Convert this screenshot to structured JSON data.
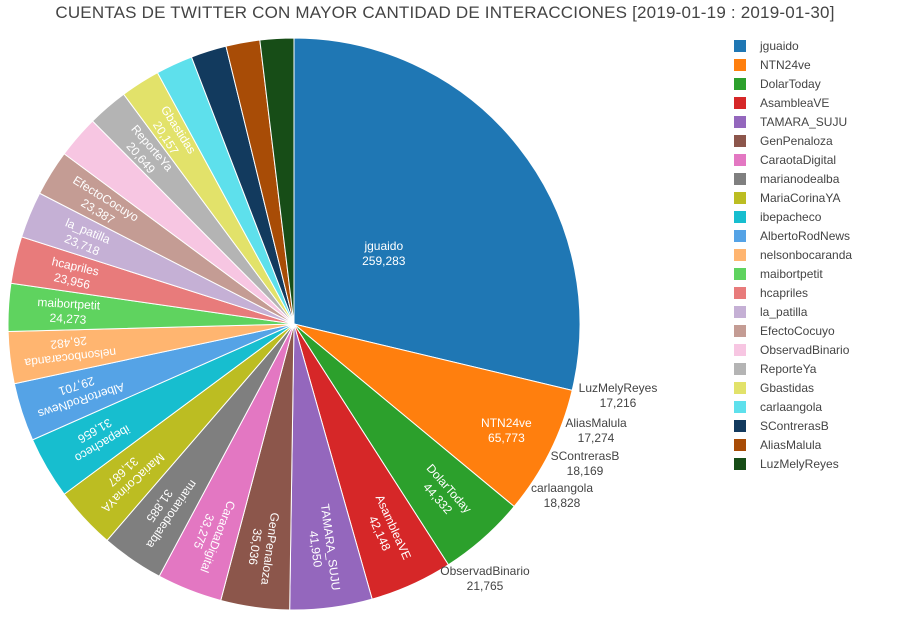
{
  "chart_data": {
    "type": "pie",
    "title": "CUENTAS DE TWITTER CON MAYOR CANTIDAD DE INTERACCIONES [2019-01-19 : 2019-01-30]",
    "legend_position": "right",
    "slices": [
      {
        "name": "jguaido",
        "value": 259283,
        "value_label": "259,283",
        "color": "#1f77b4"
      },
      {
        "name": "NTN24ve",
        "value": 65773,
        "value_label": "65,773",
        "color": "#ff7f0e"
      },
      {
        "name": "DolarToday",
        "value": 44332,
        "value_label": "44,332",
        "color": "#2ca02c"
      },
      {
        "name": "AsambleaVE",
        "value": 42148,
        "value_label": "42,148",
        "color": "#d62728"
      },
      {
        "name": "TAMARA_SUJU",
        "value": 41950,
        "value_label": "41,950",
        "color": "#9467bd"
      },
      {
        "name": "GenPenaloza",
        "value": 35036,
        "value_label": "35,036",
        "color": "#8c564b"
      },
      {
        "name": "CaraotaDigital",
        "value": 33275,
        "value_label": "33,275",
        "color": "#e377c2"
      },
      {
        "name": "marianodealba",
        "value": 31885,
        "value_label": "31,885",
        "color": "#7f7f7f"
      },
      {
        "name": "MariaCorinaYA",
        "value": 31687,
        "value_label": "31,687",
        "color": "#bcbd22"
      },
      {
        "name": "ibepacheco",
        "value": 31656,
        "value_label": "31,656",
        "color": "#17becf"
      },
      {
        "name": "AlbertoRodNews",
        "value": 29701,
        "value_label": "29,701",
        "color": "#55a3e6"
      },
      {
        "name": "nelsonbocaranda",
        "value": 26482,
        "value_label": "26,482",
        "color": "#ffb570"
      },
      {
        "name": "maibortpetit",
        "value": 24273,
        "value_label": "24,273",
        "color": "#5fd35f"
      },
      {
        "name": "hcapriles",
        "value": 23956,
        "value_label": "23,956",
        "color": "#e87b7b"
      },
      {
        "name": "la_patilla",
        "value": 23718,
        "value_label": "23,718",
        "color": "#c5b0d5"
      },
      {
        "name": "EfectoCocuyo",
        "value": 23387,
        "value_label": "23,387",
        "color": "#c49c94"
      },
      {
        "name": "ObservadBinario",
        "value": 21765,
        "value_label": "21,765",
        "color": "#f7c6e2"
      },
      {
        "name": "ReporteYa",
        "value": 20649,
        "value_label": "20,649",
        "color": "#b4b4b4"
      },
      {
        "name": "Gbastidas",
        "value": 20157,
        "value_label": "20,157",
        "color": "#e2e26a"
      },
      {
        "name": "carlaangola",
        "value": 18828,
        "value_label": "18,828",
        "color": "#5ee0ec"
      },
      {
        "name": "SContrerasB",
        "value": 18169,
        "value_label": "18,169",
        "color": "#123a5e"
      },
      {
        "name": "AliasMalula",
        "value": 17274,
        "value_label": "17,274",
        "color": "#a84c06"
      },
      {
        "name": "LuzMelyReyes",
        "value": 17216,
        "value_label": "17,216",
        "color": "#174d17"
      }
    ]
  }
}
